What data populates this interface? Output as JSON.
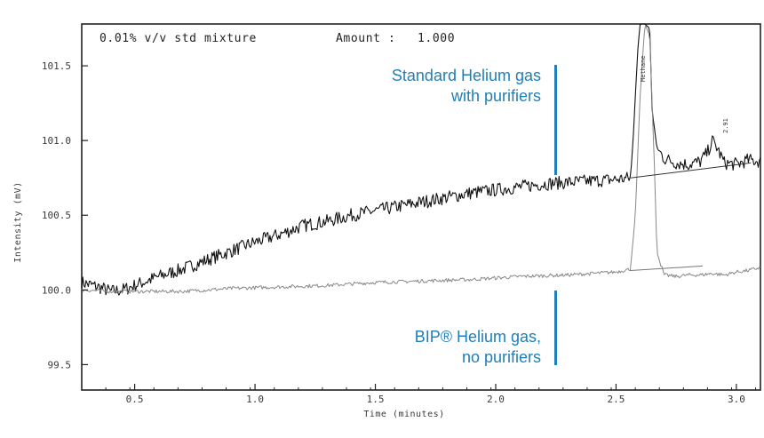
{
  "chart_data": {
    "type": "line",
    "header": "0.01% v/v std mixture",
    "amount_label": "Amount :",
    "amount_value": "1.000",
    "xlabel": "Time (minutes)",
    "ylabel": "Intensity (mV)",
    "xlim": [
      0.28,
      3.1
    ],
    "ylim": [
      99.33,
      101.78
    ],
    "x_ticks": [
      0.5,
      1.0,
      1.5,
      2.0,
      2.5,
      3.0
    ],
    "x_tick_labels": [
      "0.5",
      "1.0",
      "1.5",
      "2.0",
      "2.5",
      "3.0"
    ],
    "y_ticks": [
      99.5,
      100.0,
      100.5,
      101.0,
      101.5
    ],
    "y_tick_labels": [
      "99.5",
      "100.0",
      "100.5",
      "101.0",
      "101.5"
    ],
    "grid": false,
    "peak_labels": [
      "Methane",
      "2.91"
    ],
    "series": [
      {
        "color": "#111111",
        "x": [
          0.28,
          0.35,
          0.4,
          0.45,
          0.5,
          0.6,
          0.7,
          0.8,
          0.9,
          1.0,
          1.1,
          1.2,
          1.3,
          1.4,
          1.5,
          1.6,
          1.7,
          1.8,
          1.9,
          2.0,
          2.1,
          2.2,
          2.3,
          2.4,
          2.5,
          2.56,
          2.57,
          2.59,
          2.6,
          2.62,
          2.64,
          2.65,
          2.67,
          2.7,
          2.75,
          2.8,
          2.85,
          2.88,
          2.9,
          2.92,
          2.95,
          3.0,
          3.05,
          3.1
        ],
        "values": [
          100.05,
          100.02,
          99.99,
          100.0,
          100.03,
          100.09,
          100.14,
          100.2,
          100.26,
          100.32,
          100.37,
          100.43,
          100.46,
          100.5,
          100.53,
          100.56,
          100.59,
          100.62,
          100.65,
          100.67,
          100.69,
          100.71,
          100.72,
          100.73,
          100.74,
          100.75,
          100.98,
          101.6,
          101.78,
          101.78,
          101.75,
          101.2,
          100.95,
          100.88,
          100.85,
          100.84,
          100.86,
          100.92,
          101.0,
          100.95,
          100.85,
          100.84,
          100.87,
          100.86
        ]
      },
      {
        "color": "#888888",
        "x": [
          0.28,
          0.4,
          0.5,
          0.7,
          0.9,
          1.1,
          1.3,
          1.5,
          1.7,
          1.9,
          2.1,
          2.3,
          2.5,
          2.56,
          2.58,
          2.6,
          2.62,
          2.64,
          2.66,
          2.67,
          2.7,
          2.75,
          2.8,
          2.85,
          2.9,
          2.95,
          3.0,
          3.05,
          3.1
        ],
        "values": [
          100.0,
          99.99,
          99.99,
          99.99,
          100.01,
          100.02,
          100.03,
          100.05,
          100.06,
          100.07,
          100.09,
          100.1,
          100.12,
          100.14,
          100.5,
          101.3,
          101.78,
          101.7,
          100.8,
          100.25,
          100.1,
          100.09,
          100.1,
          100.1,
          100.11,
          100.1,
          100.12,
          100.13,
          100.15
        ]
      }
    ]
  },
  "annotations": {
    "top": [
      "Standard Helium gas",
      "with purifiers"
    ],
    "bottom": [
      "BIP® Helium gas,",
      "no purifiers"
    ],
    "accent_color": "#1f7fb8"
  }
}
